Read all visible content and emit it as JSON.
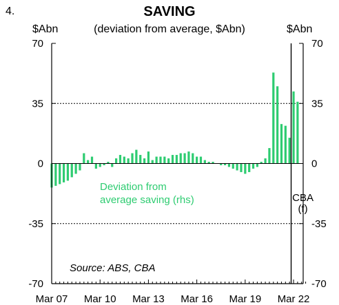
{
  "figure_number": "4.",
  "colors": {
    "bars": "#2ecc71",
    "annotation": "#2ecc71",
    "axis": "#000000"
  },
  "chart_data": {
    "type": "bar",
    "title": "SAVING",
    "subtitle": "(deviation from average, $Abn)",
    "ylabel_left": "$Abn",
    "ylabel_right": "$Abn",
    "ylim": [
      -70,
      70
    ],
    "yticks": [
      70,
      35,
      0,
      -35,
      -70
    ],
    "ytick_labels": [
      "70",
      "35",
      "0",
      "-35",
      "-70"
    ],
    "grid": "dotted horizontal at 35 and -35",
    "xlim": [
      "Mar 2007",
      "Mar 2023"
    ],
    "xtick_labels": [
      "Mar 07",
      "Mar 10",
      "Mar 13",
      "Mar 16",
      "Mar 19",
      "Mar 22"
    ],
    "forecast_start": "Mar 2022",
    "forecast_label": [
      "CBA",
      "(f)"
    ],
    "series": [
      {
        "name": "Deviation from average saving (rhs)",
        "label_lines": [
          "Deviation from",
          "average saving (rhs)"
        ],
        "x": [
          "Mar 2007",
          "Jun 2007",
          "Sep 2007",
          "Dec 2007",
          "Mar 2008",
          "Jun 2008",
          "Sep 2008",
          "Dec 2008",
          "Mar 2009",
          "Jun 2009",
          "Sep 2009",
          "Dec 2009",
          "Mar 2010",
          "Jun 2010",
          "Sep 2010",
          "Dec 2010",
          "Mar 2011",
          "Jun 2011",
          "Sep 2011",
          "Dec 2011",
          "Mar 2012",
          "Jun 2012",
          "Sep 2012",
          "Dec 2012",
          "Mar 2013",
          "Jun 2013",
          "Sep 2013",
          "Dec 2013",
          "Mar 2014",
          "Jun 2014",
          "Sep 2014",
          "Dec 2014",
          "Mar 2015",
          "Jun 2015",
          "Sep 2015",
          "Dec 2015",
          "Mar 2016",
          "Jun 2016",
          "Sep 2016",
          "Dec 2016",
          "Mar 2017",
          "Jun 2017",
          "Sep 2017",
          "Dec 2017",
          "Mar 2018",
          "Jun 2018",
          "Sep 2018",
          "Dec 2018",
          "Mar 2019",
          "Jun 2019",
          "Sep 2019",
          "Dec 2019",
          "Mar 2020",
          "Jun 2020",
          "Sep 2020",
          "Dec 2020",
          "Mar 2021",
          "Jun 2021",
          "Sep 2021",
          "Dec 2021",
          "Mar 2022",
          "Jun 2022",
          "Sep 2022",
          "Dec 2022"
        ],
        "values": [
          -14,
          -13,
          -12,
          -11,
          -10,
          -8,
          -6,
          -4,
          6,
          2,
          4,
          -3,
          -2,
          -1,
          1,
          -2,
          3,
          5,
          4,
          3,
          6,
          8,
          5,
          3,
          7,
          2,
          4,
          4,
          4,
          3,
          5,
          5,
          6,
          6,
          7,
          6,
          4,
          4,
          2,
          1,
          1,
          0,
          -1,
          -1,
          -2,
          -3,
          -4,
          -5,
          -6,
          -5,
          -3,
          -2,
          1,
          3,
          9,
          53,
          45,
          23,
          22,
          15,
          42,
          36,
          0,
          0
        ]
      }
    ],
    "annotations": [
      "Source: ABS, CBA"
    ]
  }
}
